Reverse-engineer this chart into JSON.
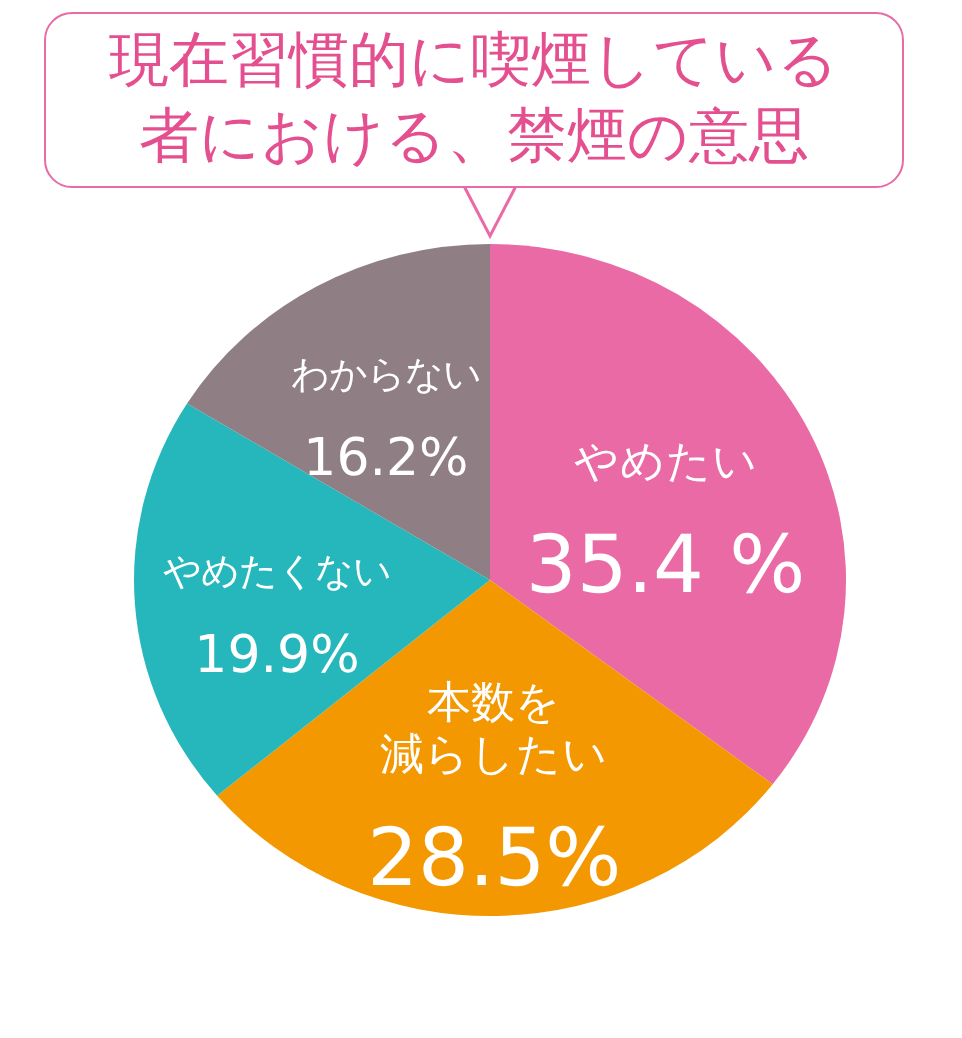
{
  "chart_data": {
    "type": "pie",
    "title": "現在習慣的に喫煙している者における、禁煙の意思",
    "categories": [
      "やめたい",
      "本数を減らしたい",
      "やめたくない",
      "わからない"
    ],
    "values": [
      35.4,
      28.5,
      19.9,
      16.2
    ],
    "colors": [
      "#e96aa5",
      "#f39800",
      "#26b7bc",
      "#8f7f84"
    ],
    "value_labels": [
      "35.4 %",
      "28.5%",
      "19.9%",
      "16.2%"
    ]
  }
}
